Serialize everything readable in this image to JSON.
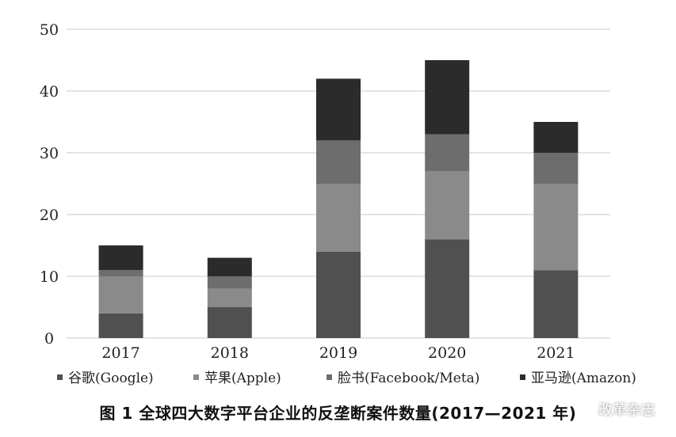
{
  "chart_data": {
    "type": "bar",
    "stacked": true,
    "categories": [
      "2017",
      "2018",
      "2019",
      "2020",
      "2021"
    ],
    "series": [
      {
        "name": "谷歌(Google)",
        "values": [
          4,
          5,
          14,
          16,
          11
        ],
        "color": "#505050"
      },
      {
        "name": "苹果(Apple)",
        "values": [
          6,
          3,
          11,
          11,
          14
        ],
        "color": "#8a8a8a"
      },
      {
        "name": "脸书(Facebook/Meta)",
        "values": [
          1,
          2,
          7,
          6,
          5
        ],
        "color": "#6d6d6d"
      },
      {
        "name": "亚马逊(Amazon)",
        "values": [
          4,
          3,
          10,
          12,
          5
        ],
        "color": "#2b2b2b"
      }
    ],
    "yticks": [
      "0",
      "10",
      "20",
      "30",
      "40",
      "50"
    ],
    "ylim": [
      0,
      50
    ],
    "grid": true,
    "legend_position": "bottom",
    "title": "图 1   全球四大数字平台企业的反垄断案件数量(2017—2021 年)"
  },
  "watermark": {
    "text": "改革杂志",
    "icon": "wechat-icon"
  }
}
